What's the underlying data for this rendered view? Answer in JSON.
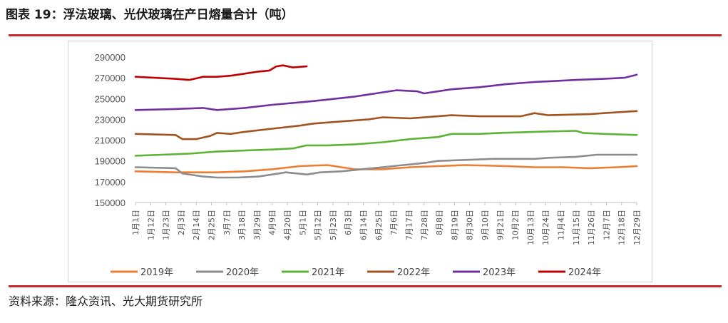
{
  "header": {
    "title": "图表 19：浮法玻璃、光伏玻璃在产日熔量合计（吨）"
  },
  "footer": {
    "source": "资料来源：隆众资讯、光大期货研究所"
  },
  "chart_data": {
    "type": "line",
    "title": "图表 19：浮法玻璃、光伏玻璃在产日熔量合计（吨）",
    "xlabel": "",
    "ylabel": "",
    "ylim": [
      150000,
      290000
    ],
    "yticks": [
      150000,
      170000,
      190000,
      210000,
      230000,
      250000,
      270000,
      290000
    ],
    "x_tick_labels": [
      "1月1日",
      "1月12日",
      "1月23日",
      "2月3日",
      "2月14日",
      "2月25日",
      "3月7日",
      "3月18日",
      "3月29日",
      "4月9日",
      "4月20日",
      "5月1日",
      "5月12日",
      "5月23日",
      "6月3日",
      "6月14日",
      "6月25日",
      "7月6日",
      "7月17日",
      "7月28日",
      "8月8日",
      "8月19日",
      "8月30日",
      "9月10日",
      "9月21日",
      "10月2日",
      "10月13日",
      "10月24日",
      "11月4日",
      "11月15日",
      "11月26日",
      "12月7日",
      "12月18日",
      "12月29日"
    ],
    "x_unit": "day_of_year",
    "grid": false,
    "legend_position": "bottom",
    "series": [
      {
        "name": "2019年",
        "color": "#ed7d31",
        "points": [
          [
            1,
            180000
          ],
          [
            30,
            179000
          ],
          [
            60,
            179000
          ],
          [
            80,
            180000
          ],
          [
            100,
            182000
          ],
          [
            120,
            185000
          ],
          [
            140,
            186000
          ],
          [
            150,
            184000
          ],
          [
            160,
            182000
          ],
          [
            180,
            182000
          ],
          [
            200,
            184000
          ],
          [
            220,
            185000
          ],
          [
            240,
            186000
          ],
          [
            270,
            185000
          ],
          [
            290,
            184000
          ],
          [
            310,
            184000
          ],
          [
            330,
            183000
          ],
          [
            350,
            184000
          ],
          [
            364,
            185000
          ]
        ]
      },
      {
        "name": "2020年",
        "color": "#8c8c8c",
        "points": [
          [
            1,
            184000
          ],
          [
            30,
            183000
          ],
          [
            35,
            178000
          ],
          [
            50,
            175000
          ],
          [
            60,
            174000
          ],
          [
            75,
            174000
          ],
          [
            90,
            175000
          ],
          [
            100,
            177000
          ],
          [
            110,
            179000
          ],
          [
            125,
            177000
          ],
          [
            135,
            179000
          ],
          [
            150,
            180000
          ],
          [
            165,
            182000
          ],
          [
            180,
            184000
          ],
          [
            195,
            186000
          ],
          [
            210,
            188000
          ],
          [
            220,
            190000
          ],
          [
            240,
            191000
          ],
          [
            260,
            192000
          ],
          [
            290,
            192000
          ],
          [
            300,
            193000
          ],
          [
            320,
            194000
          ],
          [
            335,
            196000
          ],
          [
            364,
            196000
          ]
        ]
      },
      {
        "name": "2021年",
        "color": "#5cb335",
        "points": [
          [
            1,
            195000
          ],
          [
            20,
            196000
          ],
          [
            40,
            197000
          ],
          [
            60,
            199000
          ],
          [
            80,
            200000
          ],
          [
            100,
            201000
          ],
          [
            115,
            202000
          ],
          [
            125,
            205000
          ],
          [
            140,
            205000
          ],
          [
            160,
            206000
          ],
          [
            180,
            208000
          ],
          [
            200,
            211000
          ],
          [
            220,
            213000
          ],
          [
            230,
            216000
          ],
          [
            250,
            216000
          ],
          [
            265,
            217000
          ],
          [
            290,
            218000
          ],
          [
            320,
            219000
          ],
          [
            325,
            217000
          ],
          [
            340,
            216000
          ],
          [
            364,
            215000
          ]
        ]
      },
      {
        "name": "2022年",
        "color": "#a0521f",
        "points": [
          [
            1,
            216000
          ],
          [
            30,
            215000
          ],
          [
            35,
            211000
          ],
          [
            45,
            211000
          ],
          [
            55,
            214000
          ],
          [
            60,
            217000
          ],
          [
            70,
            216000
          ],
          [
            80,
            218000
          ],
          [
            100,
            221000
          ],
          [
            120,
            224000
          ],
          [
            130,
            226000
          ],
          [
            150,
            228000
          ],
          [
            170,
            230000
          ],
          [
            180,
            232000
          ],
          [
            200,
            231000
          ],
          [
            220,
            233000
          ],
          [
            230,
            234000
          ],
          [
            250,
            233000
          ],
          [
            280,
            233000
          ],
          [
            290,
            236000
          ],
          [
            300,
            234000
          ],
          [
            330,
            235000
          ],
          [
            340,
            236000
          ],
          [
            364,
            238000
          ]
        ]
      },
      {
        "name": "2023年",
        "color": "#7030a0",
        "points": [
          [
            1,
            239000
          ],
          [
            30,
            240000
          ],
          [
            50,
            241000
          ],
          [
            60,
            239000
          ],
          [
            80,
            241000
          ],
          [
            100,
            244000
          ],
          [
            125,
            247000
          ],
          [
            140,
            249000
          ],
          [
            160,
            252000
          ],
          [
            175,
            255000
          ],
          [
            190,
            258000
          ],
          [
            205,
            257000
          ],
          [
            210,
            255000
          ],
          [
            230,
            259000
          ],
          [
            250,
            261000
          ],
          [
            270,
            264000
          ],
          [
            290,
            266000
          ],
          [
            320,
            268000
          ],
          [
            340,
            269000
          ],
          [
            355,
            270000
          ],
          [
            364,
            273000
          ]
        ]
      },
      {
        "name": "2024年",
        "color": "#c00000",
        "points": [
          [
            1,
            271000
          ],
          [
            15,
            270000
          ],
          [
            30,
            269000
          ],
          [
            40,
            268000
          ],
          [
            50,
            271000
          ],
          [
            60,
            271000
          ],
          [
            70,
            272000
          ],
          [
            80,
            274000
          ],
          [
            90,
            276000
          ],
          [
            98,
            277000
          ],
          [
            103,
            281000
          ],
          [
            108,
            282000
          ],
          [
            115,
            280000
          ],
          [
            125,
            281000
          ]
        ]
      }
    ]
  }
}
